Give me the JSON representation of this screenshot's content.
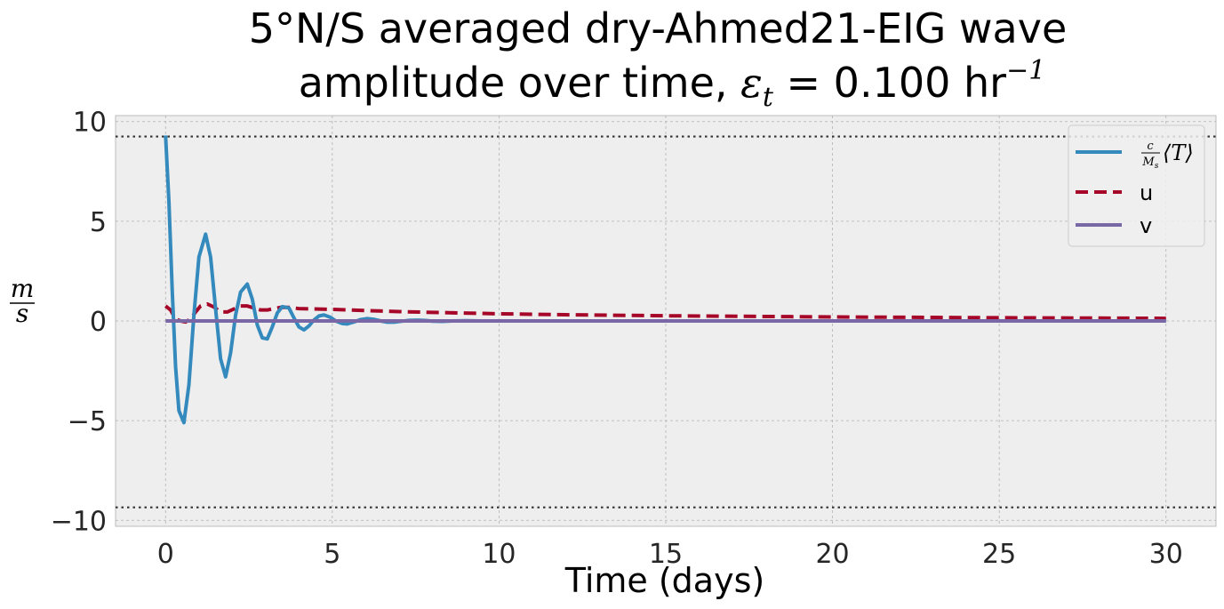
{
  "chart_data": {
    "type": "line",
    "title_line1": "5°N/S averaged dry-Ahmed21-EIG wave",
    "title_line2_prefix": "amplitude over time, ",
    "title_epsilon": "ε",
    "title_epsilon_sub": "t",
    "title_line2_value": " = 0.100 hr",
    "title_line2_exp": "−1",
    "xlabel": "Time (days)",
    "ylabel_num": "m",
    "ylabel_den": "s",
    "xlim": [
      -1.5,
      31.5
    ],
    "ylim": [
      -10.3,
      10.3
    ],
    "xticks": [
      0,
      5,
      10,
      15,
      20,
      25,
      30
    ],
    "xtick_labels": [
      "0",
      "5",
      "10",
      "15",
      "20",
      "25",
      "30"
    ],
    "yticks": [
      10,
      5,
      0,
      -5,
      -10
    ],
    "ytick_labels": [
      "10",
      "5",
      "0",
      "−5",
      "−10"
    ],
    "grid": true,
    "legend_position": "top-right",
    "reference_lines": [
      9.25,
      -9.35
    ],
    "series": [
      {
        "name": "c/Ms ⟨T⟩",
        "legend_label_parts": {
          "num": "c",
          "den": "M",
          "den_sub": "s",
          "bracket": "⟨T⟩"
        },
        "style": "solid",
        "color": "#348abd",
        "x": [
          0,
          0.1,
          0.2,
          0.3,
          0.4,
          0.55,
          0.7,
          0.85,
          1.0,
          1.2,
          1.35,
          1.5,
          1.65,
          1.8,
          1.95,
          2.1,
          2.25,
          2.45,
          2.6,
          2.75,
          2.9,
          3.05,
          3.2,
          3.35,
          3.5,
          3.7,
          3.85,
          4.0,
          4.15,
          4.3,
          4.45,
          4.6,
          4.75,
          4.95,
          5.1,
          5.3,
          5.45,
          5.65,
          5.85,
          6.05,
          6.25,
          6.45,
          6.65,
          6.85,
          7.05,
          7.3,
          7.55,
          7.8,
          8.0,
          8.3,
          8.6,
          9.0,
          9.5,
          10,
          12,
          15,
          20,
          25,
          30
        ],
        "y": [
          9.3,
          6.0,
          1.5,
          -2.3,
          -4.5,
          -5.1,
          -3.2,
          0.3,
          3.2,
          4.35,
          3.2,
          0.6,
          -1.9,
          -2.8,
          -1.6,
          0.3,
          1.45,
          1.85,
          1.1,
          -0.2,
          -0.85,
          -0.9,
          -0.3,
          0.4,
          0.72,
          0.65,
          0.15,
          -0.3,
          -0.45,
          -0.25,
          0.05,
          0.25,
          0.3,
          0.18,
          0.0,
          -0.13,
          -0.15,
          -0.05,
          0.07,
          0.12,
          0.08,
          0.0,
          -0.06,
          -0.06,
          -0.02,
          0.03,
          0.04,
          0.02,
          -0.01,
          -0.02,
          0.0,
          0.01,
          0.0,
          0.0,
          0.0,
          0.0,
          0.0,
          0.0,
          0.0
        ]
      },
      {
        "name": "u",
        "style": "dashed",
        "color": "#a60628",
        "x": [
          0,
          0.15,
          0.3,
          0.45,
          0.6,
          0.75,
          0.9,
          1.05,
          1.25,
          1.45,
          1.65,
          1.85,
          2.05,
          2.25,
          2.45,
          2.65,
          2.85,
          3.05,
          3.25,
          3.45,
          3.7,
          4.0,
          5,
          6,
          7,
          8,
          10,
          12,
          15,
          20,
          25,
          30
        ],
        "y": [
          0.75,
          0.55,
          0.1,
          0.0,
          -0.05,
          0.1,
          0.45,
          0.75,
          0.85,
          0.7,
          0.45,
          0.45,
          0.6,
          0.75,
          0.75,
          0.65,
          0.55,
          0.55,
          0.62,
          0.68,
          0.68,
          0.62,
          0.58,
          0.52,
          0.47,
          0.43,
          0.36,
          0.31,
          0.26,
          0.2,
          0.16,
          0.13
        ]
      },
      {
        "name": "v",
        "style": "solid",
        "color": "#7a68a6",
        "x": [
          0,
          30
        ],
        "y": [
          0,
          0
        ]
      }
    ]
  }
}
